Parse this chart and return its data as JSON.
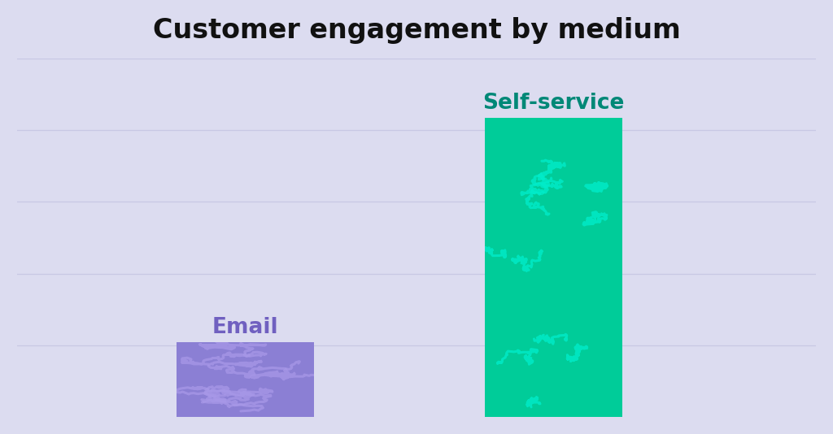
{
  "title": "Customer engagement by medium",
  "title_fontsize": 24,
  "title_fontweight": "bold",
  "title_color": "#111111",
  "background_color": "#dcdcf0",
  "categories": [
    "Email",
    "Self-service"
  ],
  "values": [
    1,
    4.0
  ],
  "bar_colors": [
    "#8b7fd4",
    "#00cc99"
  ],
  "label_colors": [
    "#7060c0",
    "#008877"
  ],
  "label_fontsize": 19,
  "label_fontweight": "bold",
  "bar_width": 0.12,
  "ylim": [
    0,
    4.8
  ],
  "grid_color": "#c8c8e4",
  "grid_alpha": 1.0,
  "grid_linewidth": 0.9,
  "bar_positions": [
    0.35,
    0.62
  ],
  "squiggle_color_email": "#a898e8",
  "squiggle_color_self": "#00eecc",
  "squiggle_alpha": 0.75,
  "squiggle_linewidth": 2.2
}
